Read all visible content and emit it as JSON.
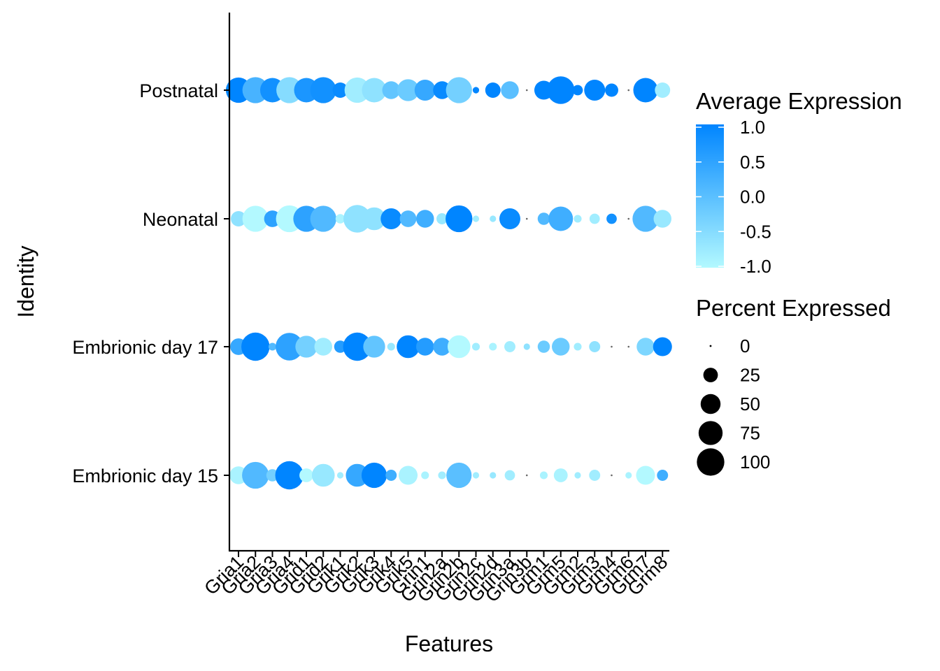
{
  "chart_data": {
    "type": "scatter",
    "subtype": "dot-plot",
    "xlabel": "Features",
    "ylabel": "Identity",
    "features": [
      "Gria1",
      "Gria2",
      "Gria3",
      "Gria4",
      "Grid1",
      "Grid2",
      "Grik1",
      "Grik2",
      "Grik3",
      "Grik4",
      "Grik5",
      "Grin1",
      "Grin2a",
      "Grin2b",
      "Grin2c",
      "Grin2d",
      "Grin3a",
      "Grin3b",
      "Grm1",
      "Grm5",
      "Grm2",
      "Grm3",
      "Grm4",
      "Grm6",
      "Grm7",
      "Grm8"
    ],
    "identities": [
      "Postnatal",
      "Neonatal",
      "Embrionic day 17",
      "Embrionic day 15"
    ],
    "avg_exp": [
      [
        1.0,
        0.2,
        0.8,
        -0.5,
        0.7,
        0.8,
        0.9,
        -0.8,
        -0.6,
        -0.1,
        -0.2,
        0.4,
        0.9,
        -0.3,
        1.0,
        1.0,
        0.0,
        -0.5,
        1.0,
        1.0,
        1.0,
        1.0,
        1.0,
        -0.5,
        1.0,
        -0.8
      ],
      [
        -0.6,
        -1.0,
        0.5,
        -1.0,
        0.5,
        0.1,
        -0.9,
        -0.6,
        -0.6,
        0.9,
        0.1,
        0.3,
        -0.7,
        1.0,
        -0.8,
        -0.7,
        0.9,
        -0.5,
        0.1,
        0.3,
        -0.8,
        -0.8,
        0.8,
        -0.9,
        0.1,
        -0.7
      ],
      [
        0.4,
        1.0,
        0.1,
        0.5,
        -0.3,
        -0.8,
        0.6,
        1.0,
        -0.1,
        -0.7,
        1.0,
        0.6,
        0.3,
        -1.0,
        -0.8,
        -0.9,
        -0.8,
        -0.6,
        -0.2,
        -0.2,
        -0.8,
        -0.6,
        -0.8,
        -0.9,
        -0.4,
        1.0
      ],
      [
        -0.9,
        0.1,
        -0.3,
        1.0,
        -1.0,
        -0.7,
        -0.8,
        0.4,
        1.0,
        0.3,
        -0.9,
        -0.9,
        -0.8,
        0.0,
        -0.8,
        -0.7,
        -0.8,
        -0.6,
        -0.9,
        -0.9,
        -0.8,
        -0.8,
        -0.9,
        -0.9,
        -1.0,
        0.3
      ]
    ],
    "pct_exp": [
      [
        75,
        80,
        70,
        80,
        70,
        80,
        25,
        75,
        70,
        35,
        55,
        50,
        35,
        80,
        3,
        25,
        35,
        2,
        40,
        90,
        10,
        50,
        18,
        2,
        70,
        25
      ],
      [
        25,
        80,
        30,
        85,
        80,
        80,
        8,
        90,
        60,
        50,
        30,
        35,
        12,
        85,
        3,
        3,
        50,
        2,
        15,
        70,
        5,
        10,
        10,
        2,
        80,
        35
      ],
      [
        30,
        95,
        5,
        90,
        55,
        35,
        15,
        95,
        55,
        5,
        60,
        35,
        35,
        60,
        5,
        5,
        12,
        3,
        15,
        35,
        5,
        12,
        2,
        2,
        35,
        40
      ],
      [
        35,
        85,
        15,
        95,
        20,
        60,
        3,
        60,
        75,
        12,
        40,
        5,
        5,
        75,
        3,
        3,
        10,
        2,
        5,
        20,
        3,
        12,
        2,
        3,
        40,
        12
      ]
    ],
    "color_scale": {
      "low_color": "#B3F9FF",
      "high_color": "#0085FF",
      "range": [
        -1.0,
        1.0
      ],
      "ticks": [
        "1.0",
        "0.5",
        "0.0",
        "-0.5",
        "-1.0"
      ]
    },
    "size_scale": {
      "range": [
        0,
        100
      ],
      "ticks": [
        "0",
        "25",
        "50",
        "75",
        "100"
      ]
    },
    "legend": {
      "color_title": "Average Expression",
      "size_title": "Percent Expressed",
      "placement": "right"
    },
    "grid": false
  }
}
